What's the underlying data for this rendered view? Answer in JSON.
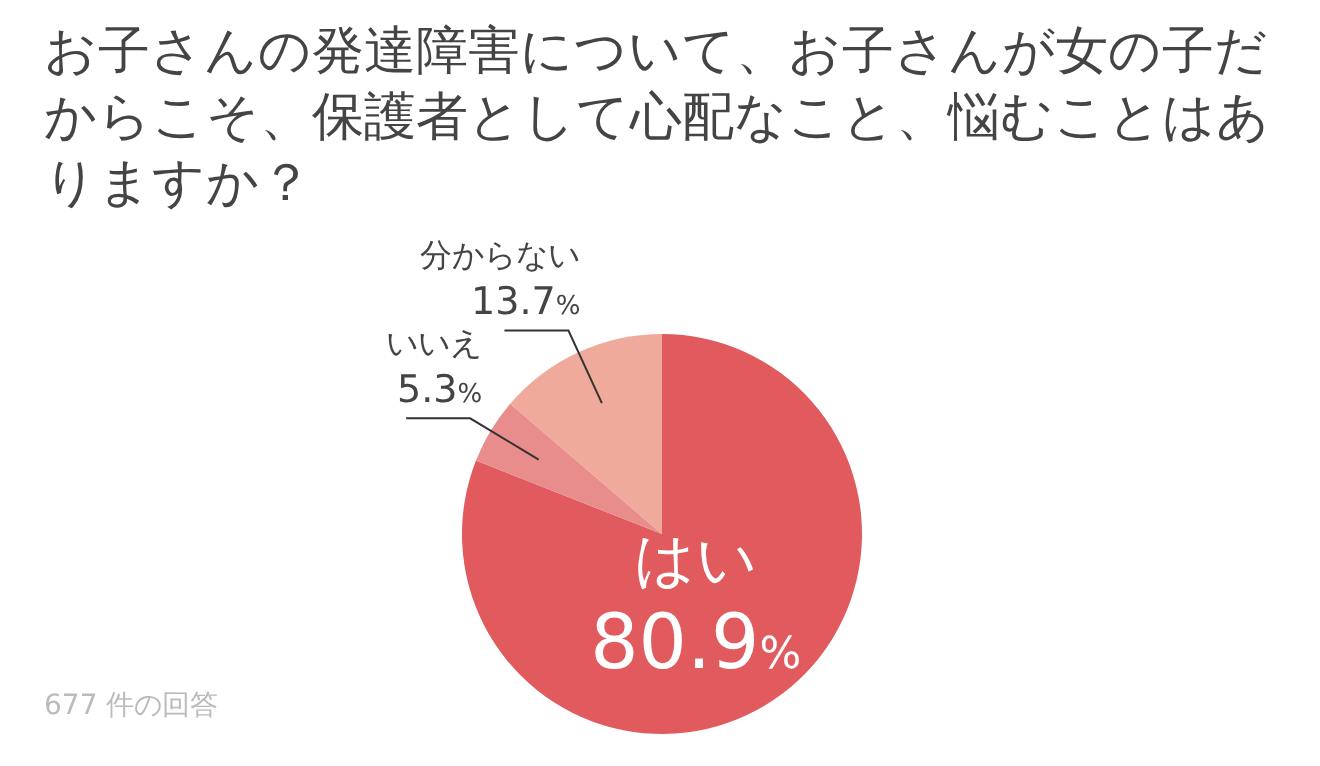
{
  "chart_data": {
    "type": "pie",
    "title": "お子さんの発達障害について、お子さんが女の子だからこそ、保護者として心配なこと、悩むことはありますか？",
    "categories": [
      "はい",
      "いいえ",
      "分からない"
    ],
    "values": [
      80.9,
      5.3,
      13.7
    ],
    "value_labels": [
      "80.9%",
      "5.3%",
      "13.7%"
    ],
    "colors": [
      "#e05a5e",
      "#e88c8c",
      "#f0aa9c"
    ],
    "legend": false,
    "annotations": [
      "677 件の回答"
    ]
  }
}
